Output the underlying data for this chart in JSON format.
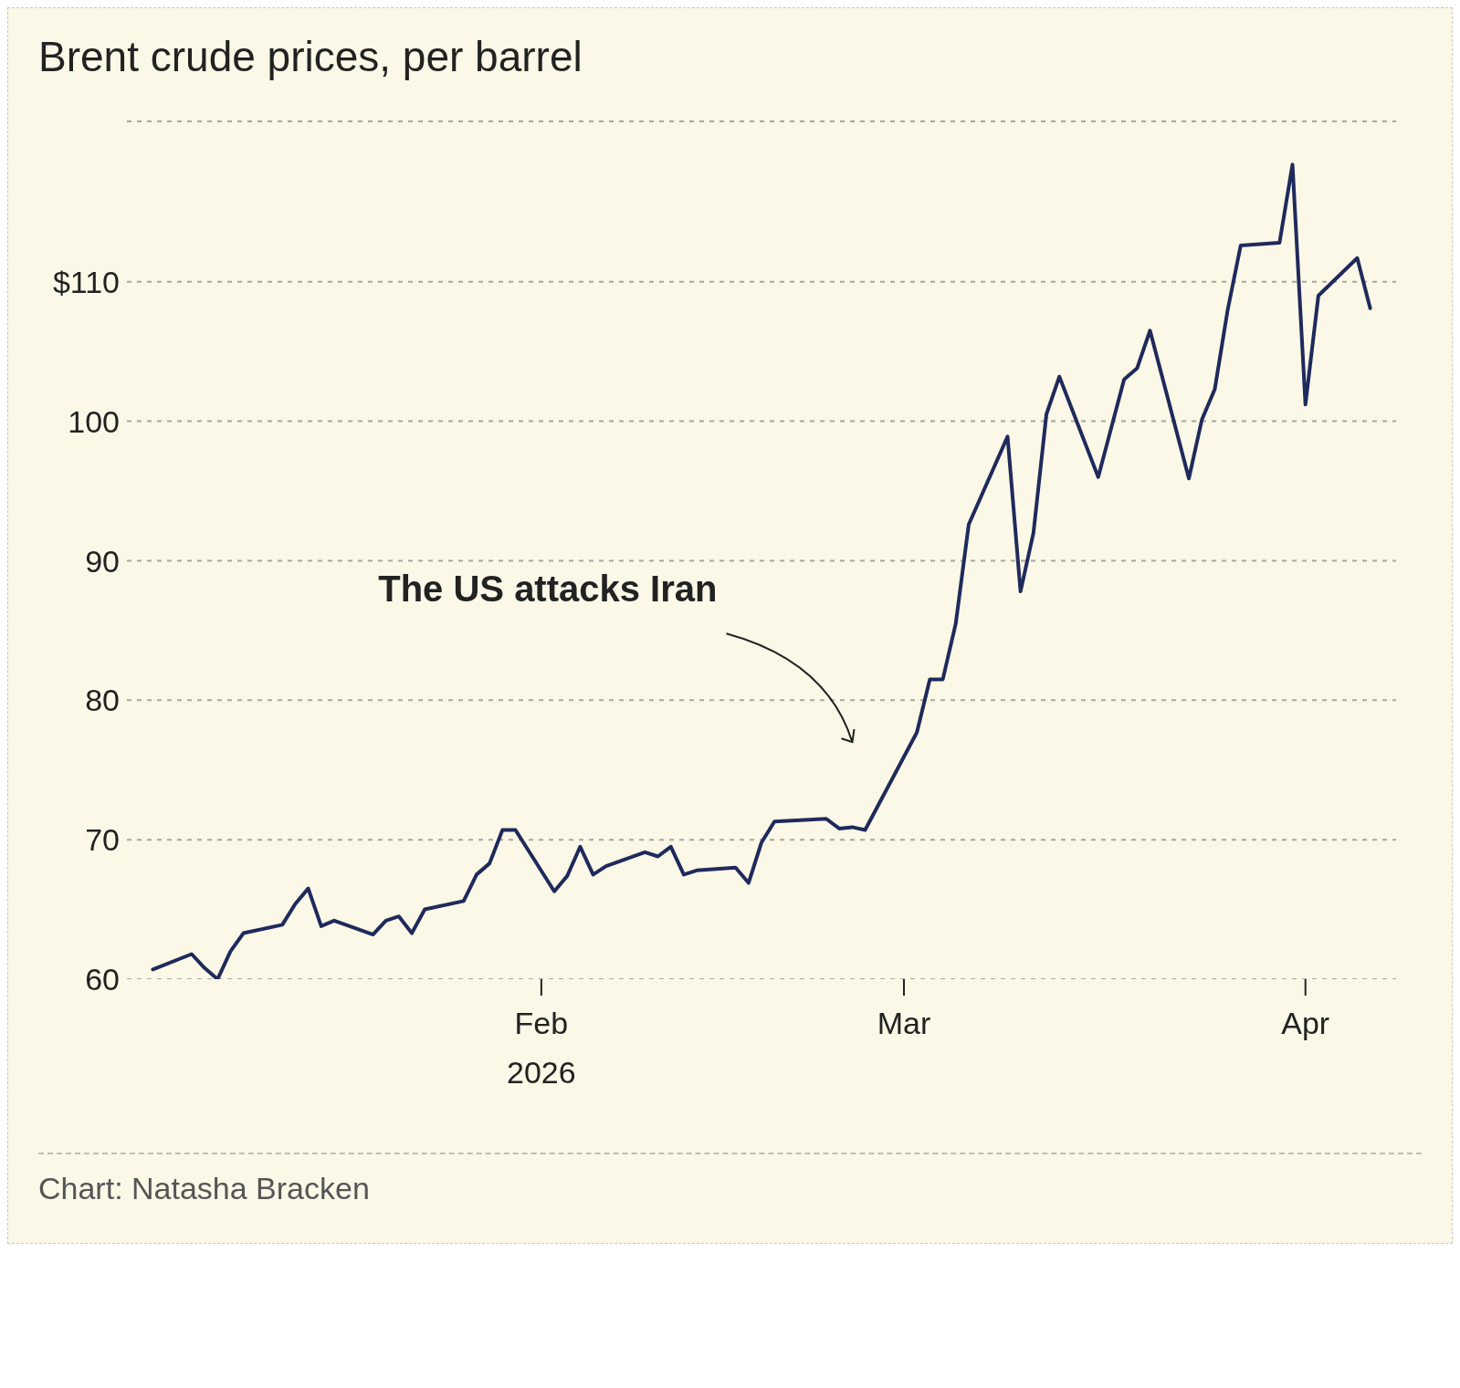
{
  "chart_data": {
    "type": "line",
    "title": "Brent crude prices, per barrel",
    "x": [
      "2026-01-02",
      "2026-01-05",
      "2026-01-06",
      "2026-01-07",
      "2026-01-08",
      "2026-01-09",
      "2026-01-12",
      "2026-01-13",
      "2026-01-14",
      "2026-01-15",
      "2026-01-16",
      "2026-01-19",
      "2026-01-20",
      "2026-01-21",
      "2026-01-22",
      "2026-01-23",
      "2026-01-26",
      "2026-01-27",
      "2026-01-28",
      "2026-01-29",
      "2026-01-30",
      "2026-02-02",
      "2026-02-03",
      "2026-02-04",
      "2026-02-05",
      "2026-02-06",
      "2026-02-09",
      "2026-02-10",
      "2026-02-11",
      "2026-02-12",
      "2026-02-13",
      "2026-02-16",
      "2026-02-17",
      "2026-02-18",
      "2026-02-19",
      "2026-02-23",
      "2026-02-24",
      "2026-02-25",
      "2026-02-26",
      "2026-03-02",
      "2026-03-03",
      "2026-03-04",
      "2026-03-05",
      "2026-03-06",
      "2026-03-09",
      "2026-03-10",
      "2026-03-11",
      "2026-03-12",
      "2026-03-13",
      "2026-03-16",
      "2026-03-18",
      "2026-03-19",
      "2026-03-20",
      "2026-03-23",
      "2026-03-24",
      "2026-03-25",
      "2026-03-26",
      "2026-03-27",
      "2026-03-30",
      "2026-03-31",
      "2026-04-01",
      "2026-04-02",
      "2026-04-05",
      "2026-04-06"
    ],
    "series": [
      {
        "color": "#1f2a5c",
        "values": [
          60.7,
          61.8,
          60.8,
          60.0,
          62.0,
          63.3,
          63.9,
          65.4,
          66.5,
          63.8,
          64.2,
          63.2,
          64.2,
          64.5,
          63.3,
          65.0,
          65.6,
          67.5,
          68.3,
          70.7,
          70.7,
          66.3,
          67.4,
          69.5,
          67.5,
          68.1,
          69.1,
          68.8,
          69.5,
          67.5,
          67.8,
          68.0,
          66.9,
          69.8,
          71.3,
          71.5,
          70.8,
          70.9,
          70.7,
          77.7,
          81.5,
          81.5,
          85.5,
          92.6,
          98.9,
          87.8,
          92.0,
          100.5,
          103.2,
          96.0,
          103.0,
          103.8,
          106.5,
          95.9,
          100.1,
          102.3,
          108.0,
          112.6,
          112.8,
          118.4,
          101.2,
          109.0,
          111.7,
          108.1
        ]
      }
    ],
    "xlim": [
      "2025-12-31",
      "2026-04-08"
    ],
    "xticks": [
      {
        "value": "2026-02-01",
        "label": "Feb\n2026"
      },
      {
        "value": "2026-03-01",
        "label": "Mar"
      },
      {
        "value": "2026-04-01",
        "label": "Apr"
      }
    ],
    "ylim": [
      60,
      121.5
    ],
    "yticks": [
      60,
      70,
      80,
      90,
      100,
      {
        "value": 110,
        "label": "$110"
      }
    ],
    "grid": "y",
    "marker": "none",
    "line_style": "solid",
    "annotations": [
      "The US attacks Iran",
      "Chart: Natasha Bracken"
    ]
  }
}
